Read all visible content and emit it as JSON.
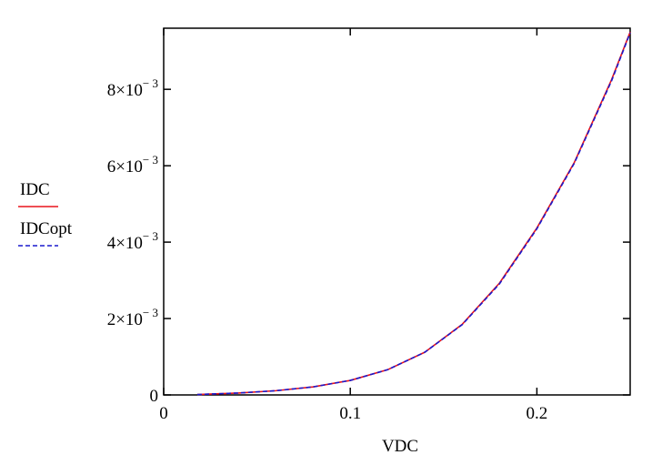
{
  "chart_data": {
    "type": "line",
    "xlabel": "VDC",
    "ylabel": "",
    "xlim": [
      0,
      0.25
    ],
    "ylim": [
      0,
      0.0096
    ],
    "grid": false,
    "legend_position": "left",
    "x_ticks": [
      {
        "value": 0,
        "label": "0"
      },
      {
        "value": 0.1,
        "label": "0.1"
      },
      {
        "value": 0.2,
        "label": "0.2"
      }
    ],
    "y_ticks": [
      {
        "value": 0,
        "mantissa": "0",
        "exponent": ""
      },
      {
        "value": 0.002,
        "mantissa": "2×10",
        "exponent": "− 3"
      },
      {
        "value": 0.004,
        "mantissa": "4×10",
        "exponent": "− 3"
      },
      {
        "value": 0.006,
        "mantissa": "6×10",
        "exponent": "− 3"
      },
      {
        "value": 0.008,
        "mantissa": "8×10",
        "exponent": "− 3"
      }
    ],
    "x": [
      0.018,
      0.04,
      0.06,
      0.08,
      0.1,
      0.12,
      0.14,
      0.16,
      0.18,
      0.2,
      0.22,
      0.24,
      0.25
    ],
    "series": [
      {
        "name": "IDC",
        "color": "#e8141c",
        "style": "solid",
        "values": [
          1e-05,
          5e-05,
          0.00011,
          0.00021,
          0.00038,
          0.00066,
          0.00112,
          0.00185,
          0.00293,
          0.00437,
          0.00608,
          0.00825,
          0.0095
        ]
      },
      {
        "name": "IDCopt",
        "color": "#1a1acd",
        "style": "dashed",
        "values": [
          1e-05,
          5e-05,
          0.00011,
          0.00021,
          0.00038,
          0.00066,
          0.00112,
          0.00184,
          0.00291,
          0.00435,
          0.00606,
          0.00822,
          0.00948
        ]
      }
    ]
  }
}
